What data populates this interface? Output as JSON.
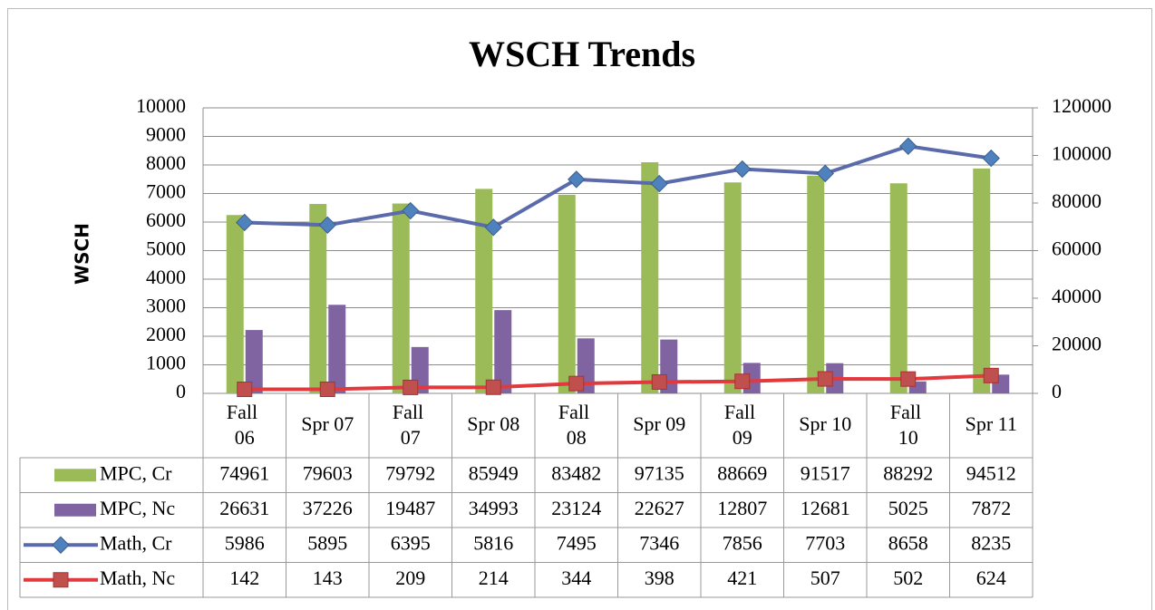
{
  "chart_data": {
    "type": "bar",
    "title": "WSCH Trends",
    "y_label": "WSCH",
    "categories": [
      "Fall 06",
      "Spr 07",
      "Fall 07",
      "Spr 08",
      "Fall 08",
      "Spr 09",
      "Fall 09",
      "Spr 10",
      "Fall 10",
      "Spr 11"
    ],
    "series": [
      {
        "name": "MPC, Cr",
        "type": "bar",
        "axis": "y2",
        "color": "#9bbb59",
        "values": [
          74961,
          79603,
          79792,
          85949,
          83482,
          97135,
          88669,
          91517,
          88292,
          94512
        ]
      },
      {
        "name": "MPC, Nc",
        "type": "bar",
        "axis": "y2",
        "color": "#8064a2",
        "values": [
          26631,
          37226,
          19487,
          34993,
          23124,
          22627,
          12807,
          12681,
          5025,
          7872
        ]
      },
      {
        "name": "Math, Cr",
        "type": "line",
        "axis": "y",
        "color": "#5a6aaa",
        "marker": "diamond",
        "marker_color": "#4f81bd",
        "values": [
          5986,
          5895,
          6395,
          5816,
          7495,
          7346,
          7856,
          7703,
          8658,
          8235
        ]
      },
      {
        "name": "Math, Nc",
        "type": "line",
        "axis": "y",
        "color": "#e0393e",
        "marker": "square",
        "marker_color": "#c0504d",
        "values": [
          142,
          143,
          209,
          214,
          344,
          398,
          421,
          507,
          502,
          624
        ]
      }
    ],
    "ylim": [
      0,
      10000
    ],
    "yticks": [
      0,
      1000,
      2000,
      3000,
      4000,
      5000,
      6000,
      7000,
      8000,
      9000,
      10000
    ],
    "y2lim": [
      0,
      120000
    ],
    "y2ticks": [
      0,
      20000,
      40000,
      60000,
      80000,
      100000,
      120000
    ],
    "grid": true,
    "data_table": true
  }
}
